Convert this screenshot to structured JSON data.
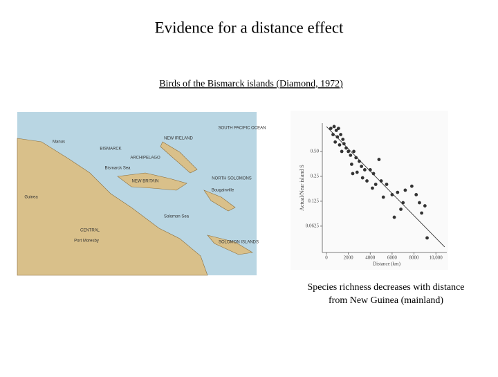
{
  "title": "Evidence for a distance effect",
  "subtitle": "Birds of the Bismarck islands (Diamond, 1972)",
  "map": {
    "labels": [
      "SOUTH PACIFIC OCEAN",
      "NEW IRELAND",
      "BISMARCK",
      "ARCHIPELAGO",
      "Bismarck Sea",
      "Manus",
      "Guinea",
      "NORTH SOLOMONS",
      "Solomon Sea",
      "SOLOMON ISLANDS",
      "Port Moresby",
      "CENTRAL",
      "Bougainville",
      "NEW BRITAIN"
    ]
  },
  "chart_data": {
    "type": "scatter",
    "xlabel": "Distance (km)",
    "ylabel": "Actual/Near island S",
    "x": [
      400,
      700,
      900,
      1100,
      600,
      1000,
      1300,
      1500,
      800,
      1200,
      1600,
      1800,
      2000,
      1400,
      2200,
      2500,
      2700,
      3000,
      2300,
      3200,
      3500,
      2800,
      4000,
      4300,
      3700,
      4500,
      5000,
      4200,
      5500,
      6000,
      6500,
      7200,
      7800,
      8200,
      7000,
      6800,
      8500,
      9000,
      8700,
      6200,
      9200,
      2400,
      3300,
      5200,
      4800
    ],
    "values": [
      0.95,
      1.0,
      0.9,
      0.95,
      0.8,
      0.75,
      0.8,
      0.7,
      0.65,
      0.6,
      0.62,
      0.55,
      0.5,
      0.5,
      0.45,
      0.5,
      0.42,
      0.38,
      0.35,
      0.33,
      0.3,
      0.28,
      0.3,
      0.27,
      0.22,
      0.2,
      0.22,
      0.18,
      0.2,
      0.15,
      0.16,
      0.17,
      0.19,
      0.15,
      0.12,
      0.1,
      0.12,
      0.11,
      0.09,
      0.08,
      0.045,
      0.27,
      0.24,
      0.14,
      0.4
    ],
    "color": "#333333",
    "trendline": {
      "x": [
        0,
        10800
      ],
      "values": [
        1.0,
        0.035
      ]
    },
    "xlim": [
      0,
      11000
    ],
    "ylim": [
      0.03,
      1.1
    ],
    "ylog": true,
    "xticks": [
      0,
      2000,
      4000,
      6000,
      8000,
      {
        "value": 10000,
        "label": "10,000"
      }
    ],
    "yticks": [
      {
        "value": 0.5,
        "label": "0.50"
      },
      0.25,
      0.125,
      0.0625
    ]
  },
  "caption": [
    "Species richness decreases with distance",
    "from New Guinea (mainland)"
  ]
}
